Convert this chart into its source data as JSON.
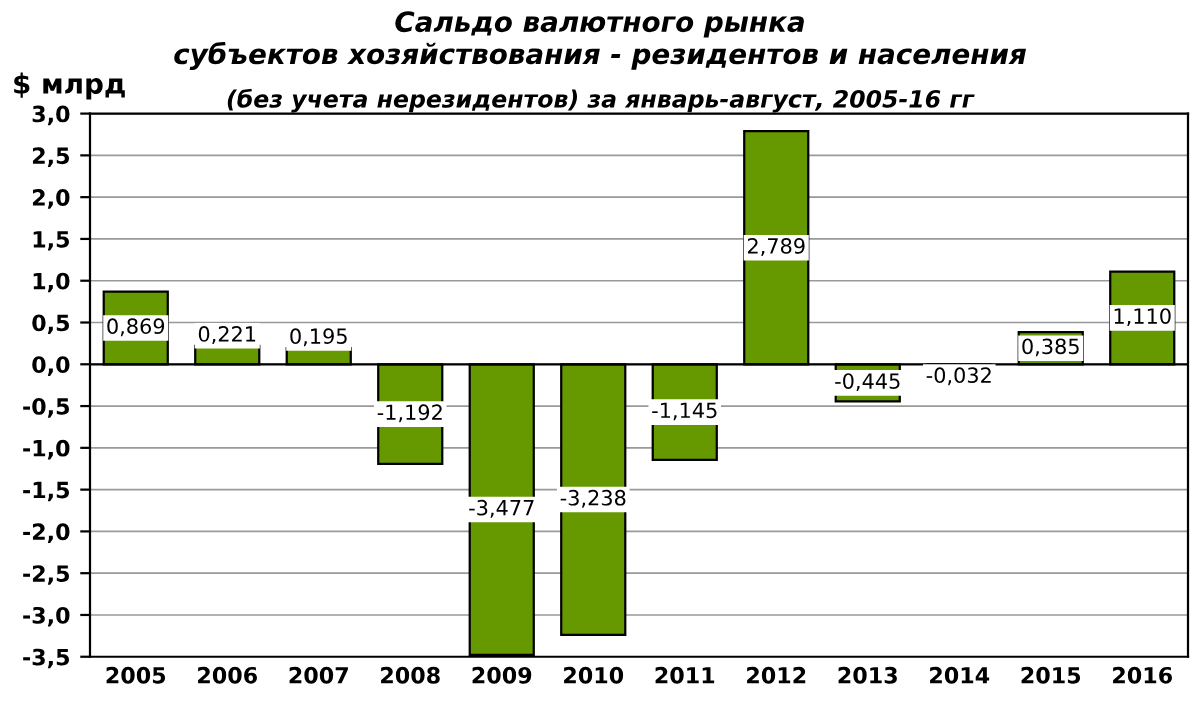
{
  "chart_data": {
    "type": "bar",
    "title": "Сальдо валютного рынка\nсубъектов хозяйствования - резидентов и населения",
    "subtitle": "(без учета нерезидентов) за январь-август, 2005-16 гг",
    "ylabel": "$ млрд",
    "categories": [
      "2005",
      "2006",
      "2007",
      "2008",
      "2009",
      "2010",
      "2011",
      "2012",
      "2013",
      "2014",
      "2015",
      "2016"
    ],
    "values": [
      0.869,
      0.221,
      0.195,
      -1.192,
      -3.477,
      -3.238,
      -1.145,
      2.789,
      -0.445,
      -0.032,
      0.385,
      1.11
    ],
    "value_labels": [
      "0,869",
      "0,221",
      "0,195",
      "-1,192",
      "-3,477",
      "-3,238",
      "-1,145",
      "2,789",
      "-0,445",
      "-0,032",
      "0,385",
      "1,110"
    ],
    "color": "#669900",
    "ylim": [
      -3.5,
      3.0
    ],
    "yticks": [
      {
        "value": -3.5,
        "label": "-3,5"
      },
      {
        "value": -3.0,
        "label": "-3,0"
      },
      {
        "value": -2.5,
        "label": "-2,5"
      },
      {
        "value": -2.0,
        "label": "-2,0"
      },
      {
        "value": -1.5,
        "label": "-1,5"
      },
      {
        "value": -1.0,
        "label": "-1,0"
      },
      {
        "value": -0.5,
        "label": "-0,5"
      },
      {
        "value": 0.0,
        "label": "0,0"
      },
      {
        "value": 0.5,
        "label": "0,5"
      },
      {
        "value": 1.0,
        "label": "1,0"
      },
      {
        "value": 1.5,
        "label": "1,5"
      },
      {
        "value": 2.0,
        "label": "2,0"
      },
      {
        "value": 2.5,
        "label": "2,5"
      },
      {
        "value": 3.0,
        "label": "3,0"
      }
    ],
    "grid": "y"
  }
}
